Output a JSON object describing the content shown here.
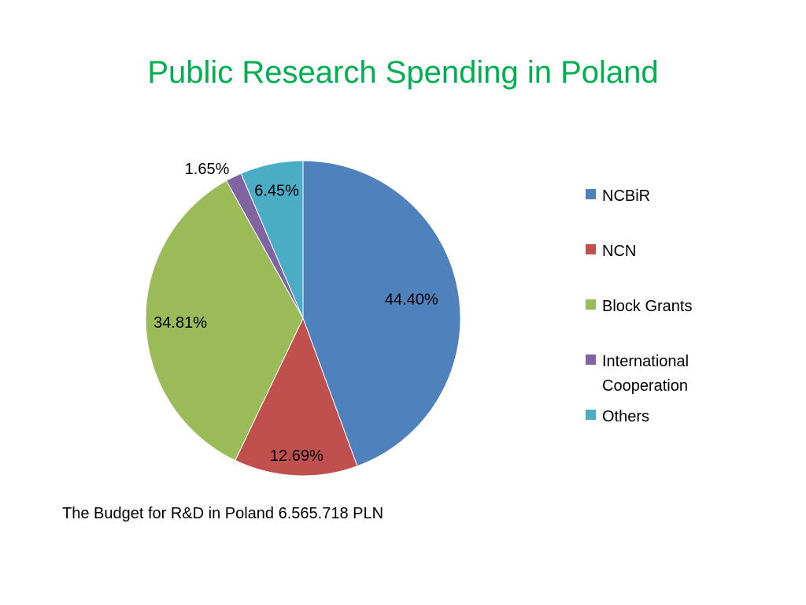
{
  "slide": {
    "title": "Public Research Spending in Poland",
    "footnote": "The Budget for R&D in Poland 6.565.718 PLN"
  },
  "chart_data": {
    "type": "pie",
    "title": "Public Research Spending in Poland",
    "legend_position": "right",
    "slices": [
      {
        "name": "NCBiR",
        "value": 44.4,
        "label": "44.40%",
        "color": "#4f81bd"
      },
      {
        "name": "NCN",
        "value": 12.69,
        "label": "12.69%",
        "color": "#c0504d"
      },
      {
        "name": "Block Grants",
        "value": 34.81,
        "label": "34.81%",
        "color": "#9bbb59"
      },
      {
        "name": "International Cooperation",
        "value": 1.65,
        "label": "1.65%",
        "color": "#8064a2"
      },
      {
        "name": "Others",
        "value": 6.45,
        "label": "6.45%",
        "color": "#4bacc6"
      }
    ]
  }
}
